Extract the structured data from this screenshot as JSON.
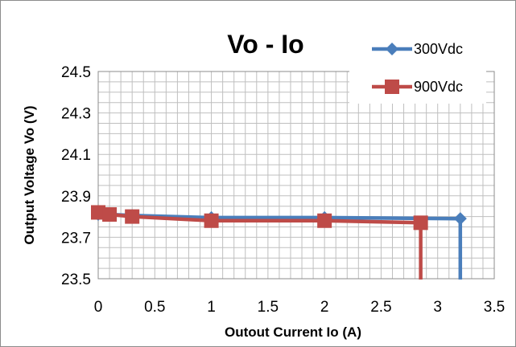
{
  "chart_data": {
    "type": "line",
    "title": "Vo - Io",
    "xlabel": "Outout Current   Io   (A)",
    "ylabel": "Output Voltage   Vo (V)",
    "xlim": [
      0,
      3.5
    ],
    "ylim": [
      23.5,
      24.5
    ],
    "x_ticks": [
      "0",
      "0.5",
      "1",
      "1.5",
      "2",
      "2.5",
      "3",
      "3.5"
    ],
    "y_ticks": [
      "24.5",
      "24.3",
      "24.1",
      "23.9",
      "23.7",
      "23.5"
    ],
    "grid": true,
    "legend_position": "top-right",
    "series": [
      {
        "name": "300Vdc",
        "color": "#4a7ebb",
        "marker": "diamond",
        "x": [
          0,
          0.1,
          0.3,
          1,
          2,
          3.2
        ],
        "y": [
          23.81,
          23.81,
          23.805,
          23.795,
          23.795,
          23.79
        ],
        "drop_x": 3.2
      },
      {
        "name": "900Vdc",
        "color": "#be4b48",
        "marker": "square",
        "x": [
          0,
          0.1,
          0.3,
          1,
          2,
          2.85
        ],
        "y": [
          23.82,
          23.81,
          23.8,
          23.78,
          23.78,
          23.77
        ],
        "drop_x": 2.85
      }
    ]
  }
}
